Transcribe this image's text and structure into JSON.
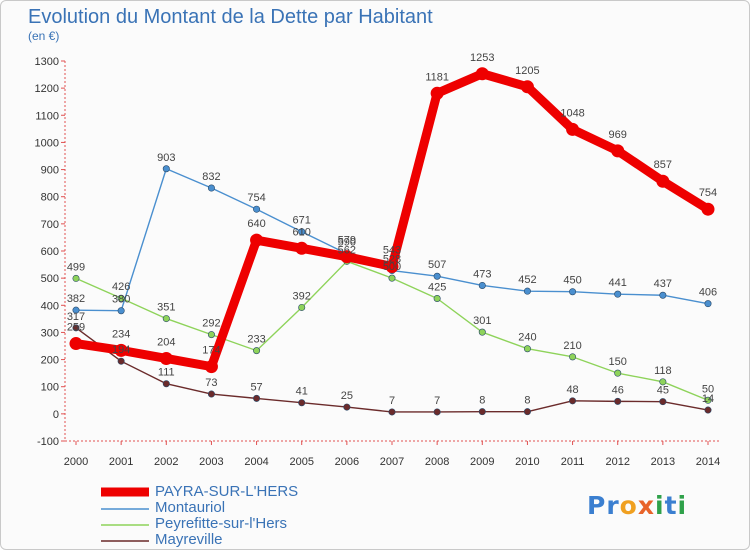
{
  "chart_data": {
    "type": "line",
    "title": "Evolution du Montant de la Dette par Habitant",
    "subtitle": "(en €)",
    "xlabel": "",
    "ylabel": "",
    "x": [
      2000,
      2001,
      2002,
      2003,
      2004,
      2005,
      2006,
      2007,
      2008,
      2009,
      2010,
      2011,
      2012,
      2013,
      2014
    ],
    "yticks": [
      -100,
      0,
      100,
      200,
      300,
      400,
      500,
      600,
      700,
      800,
      900,
      1000,
      1100,
      1200,
      1300
    ],
    "ylim": [
      -100,
      1300
    ],
    "grid": false,
    "legend": "bottom-left",
    "series": [
      {
        "name": "PAYRA-SUR-L'HERS",
        "color": "#ee0000",
        "values": [
          259,
          234,
          204,
          174,
          640,
          610,
          579,
          543,
          1181,
          1253,
          1205,
          1048,
          969,
          857,
          754
        ]
      },
      {
        "name": "Montauriol",
        "color": "#4a8fcf",
        "values": [
          382,
          380,
          903,
          832,
          754,
          671,
          590,
          528,
          507,
          473,
          452,
          450,
          441,
          437,
          406
        ]
      },
      {
        "name": "Peyrefitte-sur-l'Hers",
        "color": "#8ed35a",
        "values": [
          499,
          426,
          351,
          292,
          233,
          392,
          562,
          500,
          425,
          301,
          240,
          210,
          150,
          118,
          50
        ]
      },
      {
        "name": "Mayreville",
        "color": "#6b2b2b",
        "values": [
          317,
          194,
          111,
          73,
          57,
          41,
          25,
          7,
          7,
          8,
          8,
          48,
          46,
          45,
          14
        ]
      }
    ]
  },
  "logo": {
    "letters": [
      {
        "char": "P",
        "color": "#3b7fd0"
      },
      {
        "char": "r",
        "color": "#3b7fd0"
      },
      {
        "char": "o",
        "color": "#f0a020"
      },
      {
        "char": "x",
        "color": "#e8632a"
      },
      {
        "char": "i",
        "color": "#2fa14a"
      },
      {
        "char": "t",
        "color": "#3b7fd0"
      },
      {
        "char": "i",
        "color": "#2fa14a"
      }
    ]
  }
}
